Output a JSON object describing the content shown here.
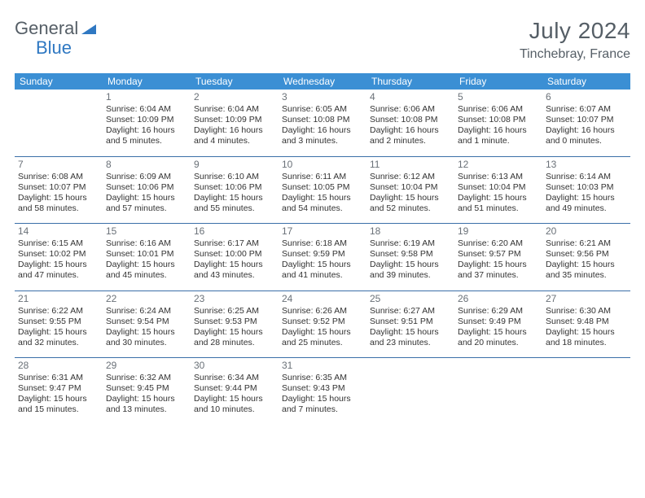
{
  "logo": {
    "text1": "General",
    "text2": "Blue",
    "color_text": "#555e66",
    "color_accent": "#2f78c2"
  },
  "title": {
    "month": "July 2024",
    "location": "Tinchebray, France"
  },
  "colors": {
    "header_bg": "#3b8fd4",
    "header_text": "#ffffff",
    "sep_line": "#3b6fa8",
    "body_text": "#333333",
    "daynum": "#6a7178"
  },
  "day_headers": [
    "Sunday",
    "Monday",
    "Tuesday",
    "Wednesday",
    "Thursday",
    "Friday",
    "Saturday"
  ],
  "weeks": [
    [
      null,
      {
        "n": "1",
        "sr": "Sunrise: 6:04 AM",
        "ss": "Sunset: 10:09 PM",
        "d1": "Daylight: 16 hours",
        "d2": "and 5 minutes."
      },
      {
        "n": "2",
        "sr": "Sunrise: 6:04 AM",
        "ss": "Sunset: 10:09 PM",
        "d1": "Daylight: 16 hours",
        "d2": "and 4 minutes."
      },
      {
        "n": "3",
        "sr": "Sunrise: 6:05 AM",
        "ss": "Sunset: 10:08 PM",
        "d1": "Daylight: 16 hours",
        "d2": "and 3 minutes."
      },
      {
        "n": "4",
        "sr": "Sunrise: 6:06 AM",
        "ss": "Sunset: 10:08 PM",
        "d1": "Daylight: 16 hours",
        "d2": "and 2 minutes."
      },
      {
        "n": "5",
        "sr": "Sunrise: 6:06 AM",
        "ss": "Sunset: 10:08 PM",
        "d1": "Daylight: 16 hours",
        "d2": "and 1 minute."
      },
      {
        "n": "6",
        "sr": "Sunrise: 6:07 AM",
        "ss": "Sunset: 10:07 PM",
        "d1": "Daylight: 16 hours",
        "d2": "and 0 minutes."
      }
    ],
    [
      {
        "n": "7",
        "sr": "Sunrise: 6:08 AM",
        "ss": "Sunset: 10:07 PM",
        "d1": "Daylight: 15 hours",
        "d2": "and 58 minutes."
      },
      {
        "n": "8",
        "sr": "Sunrise: 6:09 AM",
        "ss": "Sunset: 10:06 PM",
        "d1": "Daylight: 15 hours",
        "d2": "and 57 minutes."
      },
      {
        "n": "9",
        "sr": "Sunrise: 6:10 AM",
        "ss": "Sunset: 10:06 PM",
        "d1": "Daylight: 15 hours",
        "d2": "and 55 minutes."
      },
      {
        "n": "10",
        "sr": "Sunrise: 6:11 AM",
        "ss": "Sunset: 10:05 PM",
        "d1": "Daylight: 15 hours",
        "d2": "and 54 minutes."
      },
      {
        "n": "11",
        "sr": "Sunrise: 6:12 AM",
        "ss": "Sunset: 10:04 PM",
        "d1": "Daylight: 15 hours",
        "d2": "and 52 minutes."
      },
      {
        "n": "12",
        "sr": "Sunrise: 6:13 AM",
        "ss": "Sunset: 10:04 PM",
        "d1": "Daylight: 15 hours",
        "d2": "and 51 minutes."
      },
      {
        "n": "13",
        "sr": "Sunrise: 6:14 AM",
        "ss": "Sunset: 10:03 PM",
        "d1": "Daylight: 15 hours",
        "d2": "and 49 minutes."
      }
    ],
    [
      {
        "n": "14",
        "sr": "Sunrise: 6:15 AM",
        "ss": "Sunset: 10:02 PM",
        "d1": "Daylight: 15 hours",
        "d2": "and 47 minutes."
      },
      {
        "n": "15",
        "sr": "Sunrise: 6:16 AM",
        "ss": "Sunset: 10:01 PM",
        "d1": "Daylight: 15 hours",
        "d2": "and 45 minutes."
      },
      {
        "n": "16",
        "sr": "Sunrise: 6:17 AM",
        "ss": "Sunset: 10:00 PM",
        "d1": "Daylight: 15 hours",
        "d2": "and 43 minutes."
      },
      {
        "n": "17",
        "sr": "Sunrise: 6:18 AM",
        "ss": "Sunset: 9:59 PM",
        "d1": "Daylight: 15 hours",
        "d2": "and 41 minutes."
      },
      {
        "n": "18",
        "sr": "Sunrise: 6:19 AM",
        "ss": "Sunset: 9:58 PM",
        "d1": "Daylight: 15 hours",
        "d2": "and 39 minutes."
      },
      {
        "n": "19",
        "sr": "Sunrise: 6:20 AM",
        "ss": "Sunset: 9:57 PM",
        "d1": "Daylight: 15 hours",
        "d2": "and 37 minutes."
      },
      {
        "n": "20",
        "sr": "Sunrise: 6:21 AM",
        "ss": "Sunset: 9:56 PM",
        "d1": "Daylight: 15 hours",
        "d2": "and 35 minutes."
      }
    ],
    [
      {
        "n": "21",
        "sr": "Sunrise: 6:22 AM",
        "ss": "Sunset: 9:55 PM",
        "d1": "Daylight: 15 hours",
        "d2": "and 32 minutes."
      },
      {
        "n": "22",
        "sr": "Sunrise: 6:24 AM",
        "ss": "Sunset: 9:54 PM",
        "d1": "Daylight: 15 hours",
        "d2": "and 30 minutes."
      },
      {
        "n": "23",
        "sr": "Sunrise: 6:25 AM",
        "ss": "Sunset: 9:53 PM",
        "d1": "Daylight: 15 hours",
        "d2": "and 28 minutes."
      },
      {
        "n": "24",
        "sr": "Sunrise: 6:26 AM",
        "ss": "Sunset: 9:52 PM",
        "d1": "Daylight: 15 hours",
        "d2": "and 25 minutes."
      },
      {
        "n": "25",
        "sr": "Sunrise: 6:27 AM",
        "ss": "Sunset: 9:51 PM",
        "d1": "Daylight: 15 hours",
        "d2": "and 23 minutes."
      },
      {
        "n": "26",
        "sr": "Sunrise: 6:29 AM",
        "ss": "Sunset: 9:49 PM",
        "d1": "Daylight: 15 hours",
        "d2": "and 20 minutes."
      },
      {
        "n": "27",
        "sr": "Sunrise: 6:30 AM",
        "ss": "Sunset: 9:48 PM",
        "d1": "Daylight: 15 hours",
        "d2": "and 18 minutes."
      }
    ],
    [
      {
        "n": "28",
        "sr": "Sunrise: 6:31 AM",
        "ss": "Sunset: 9:47 PM",
        "d1": "Daylight: 15 hours",
        "d2": "and 15 minutes."
      },
      {
        "n": "29",
        "sr": "Sunrise: 6:32 AM",
        "ss": "Sunset: 9:45 PM",
        "d1": "Daylight: 15 hours",
        "d2": "and 13 minutes."
      },
      {
        "n": "30",
        "sr": "Sunrise: 6:34 AM",
        "ss": "Sunset: 9:44 PM",
        "d1": "Daylight: 15 hours",
        "d2": "and 10 minutes."
      },
      {
        "n": "31",
        "sr": "Sunrise: 6:35 AM",
        "ss": "Sunset: 9:43 PM",
        "d1": "Daylight: 15 hours",
        "d2": "and 7 minutes."
      },
      null,
      null,
      null
    ]
  ]
}
